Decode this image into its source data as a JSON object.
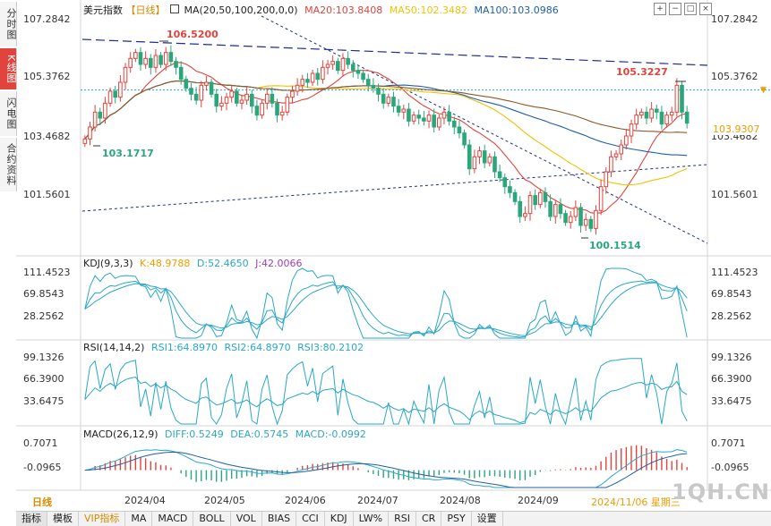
{
  "side_tabs": [
    {
      "label": "分时图",
      "active": false
    },
    {
      "label": "K线图",
      "active": true
    },
    {
      "label": "闪电图",
      "active": false
    },
    {
      "label": "合约资料",
      "active": false
    }
  ],
  "header": {
    "symbol": "美元指数",
    "period_tag": "【日线】",
    "ma_label": "MA(20,50,100,200,0,0)",
    "ma20": "MA20:103.8408",
    "ma50": "MA50:102.3482",
    "ma100": "MA100:103.0986"
  },
  "toolbar_icons": [
    "zoom-in-icon",
    "zoom-out-icon",
    "fullscreen-icon",
    "close-icon"
  ],
  "price_axis": {
    "left": [
      "107.2842",
      "105.3762",
      "103.4682",
      "101.5601"
    ],
    "right": [
      "107.2842",
      "105.3762",
      "103.4682",
      "101.5601"
    ],
    "last_price": "103.9307"
  },
  "price_annotations": {
    "high_apr": "106.5200",
    "low_apr": "103.1717",
    "low_sep": "100.1514",
    "high_nov": "105.3227"
  },
  "kdj": {
    "label": "KDJ(9,3,3)",
    "k": "K:48.9788",
    "d": "D:52.4650",
    "j": "J:42.0066",
    "ticks": [
      "111.4523",
      "69.8543",
      "28.2562"
    ]
  },
  "rsi": {
    "label": "RSI(14,14,2)",
    "rsi1": "RSI1:64.8970",
    "rsi2": "RSI2:64.8970",
    "rsi3": "RSI3:80.2102",
    "ticks": [
      "99.1326",
      "66.3900",
      "33.6475"
    ]
  },
  "macd": {
    "label": "MACD(26,12,9)",
    "diff": "DIFF:0.5249",
    "dea": "DEA:0.5745",
    "macd": "MACD:-0.0992",
    "ticks": [
      "0.7071",
      "-0.0965"
    ]
  },
  "x_axis": {
    "period": "日线",
    "months": [
      "2024/04",
      "2024/05",
      "2024/06",
      "2024/07",
      "2024/08",
      "2024/09"
    ],
    "current_date": "2024/11/06 星期三"
  },
  "bottom_tabs": [
    "指标",
    "模板",
    "VIP指标",
    "MA",
    "MACD",
    "BOLL",
    "VOL",
    "BIAS",
    "CCI",
    "KDJ",
    "LW%",
    "RSI",
    "CR",
    "PSY",
    "设置"
  ],
  "watermark": "1QH.CN",
  "colors": {
    "up": "#e0443c",
    "down": "#2aa77a",
    "ma20": "#e0443c",
    "ma50": "#f2c200",
    "ma100": "#1f5fa8",
    "ma200": "#8b5a2b",
    "accent": "#f29c00"
  },
  "chart_data": {
    "type": "candlestick",
    "title": "美元指数 日线",
    "x_range": [
      "2024-03-15",
      "2024-11-06"
    ],
    "ylim": [
      99.6,
      107.7
    ],
    "series": [
      {
        "name": "MA20",
        "value_last": 103.8408
      },
      {
        "name": "MA50",
        "value_last": 102.3482
      },
      {
        "name": "MA100",
        "value_last": 103.0986
      }
    ],
    "close_path": [
      [
        103.4,
        103.8,
        104.3,
        104.1,
        104.6,
        105.0,
        104.8,
        105.3,
        105.8,
        106.1,
        106.3,
        105.9,
        106.1,
        105.8,
        106.2,
        105.9,
        106.3,
        106.0,
        105.8,
        105.4
      ],
      [
        105.1,
        104.9,
        104.7,
        105.2,
        105.3,
        104.9,
        104.5,
        104.6,
        104.8,
        105.0,
        104.6,
        104.7,
        104.9,
        104.5,
        104.2,
        104.6,
        104.9,
        104.6,
        104.2,
        104.3
      ],
      [
        104.8,
        105.0,
        105.2,
        105.4,
        105.3,
        105.6,
        105.4,
        105.8,
        105.9,
        106.0,
        105.7,
        106.1,
        105.9,
        105.7,
        105.6,
        105.4,
        105.2,
        105.1,
        104.9,
        104.6
      ],
      [
        104.8,
        104.5,
        104.3,
        104.4,
        104.0,
        104.2,
        104.1,
        104.0,
        104.2,
        103.8,
        104.1,
        104.3,
        104.0,
        103.8,
        103.6,
        103.2,
        102.4,
        102.8,
        103.0,
        102.6
      ],
      [
        102.8,
        102.3,
        102.1,
        101.8,
        101.6,
        101.3,
        100.8,
        100.9,
        101.5,
        101.2,
        101.6,
        101.3,
        100.8,
        101.2,
        100.9,
        100.6,
        100.8,
        101.1,
        100.5,
        100.7
      ],
      [
        100.4,
        101.0,
        101.8,
        102.3,
        102.8,
        102.9,
        103.2,
        103.5,
        103.9,
        104.2,
        104.3,
        104.1,
        104.4,
        104.3,
        103.9,
        104.2,
        104.3,
        105.2,
        104.3,
        103.93
      ]
    ],
    "kdj_range": [
      0,
      120
    ],
    "rsi_range": [
      20,
      105
    ],
    "macd_range": [
      -0.6,
      1.1
    ]
  }
}
